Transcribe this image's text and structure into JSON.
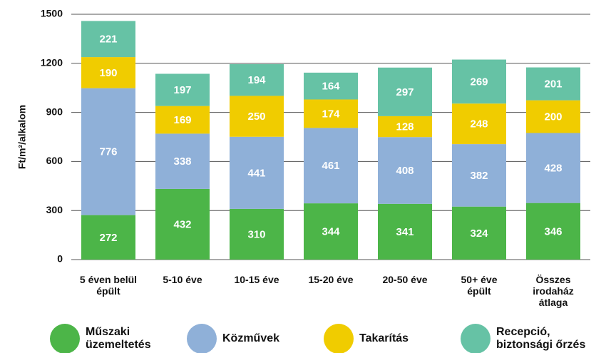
{
  "chart_data": {
    "type": "stacked_bar",
    "ylabel": "Ft/m²/alkalom",
    "categories": [
      "5 éven belül\népült",
      "5-10 éve",
      "10-15 éve",
      "15-20 éve",
      "20-50 éve",
      "50+ éve\népült",
      "Összes\nirodaház\nátlaga"
    ],
    "series": [
      {
        "name": "Műszaki\nüzemeltetés",
        "color": "#4cb548",
        "values": [
          272,
          432,
          310,
          344,
          341,
          324,
          346
        ]
      },
      {
        "name": "Közművek",
        "color": "#8fb0d8",
        "values": [
          776,
          338,
          441,
          461,
          408,
          382,
          428
        ]
      },
      {
        "name": "Takarítás",
        "color": "#f0cc00",
        "values": [
          190,
          169,
          250,
          174,
          128,
          248,
          200
        ]
      },
      {
        "name": "Recepció,\nbiztonsági őrzés",
        "color": "#66c2a5",
        "values": [
          221,
          197,
          194,
          164,
          297,
          269,
          201
        ]
      }
    ],
    "ylim": [
      0,
      1500
    ],
    "yticks": [
      0,
      300,
      600,
      900,
      1200,
      1500
    ],
    "grid": true
  }
}
